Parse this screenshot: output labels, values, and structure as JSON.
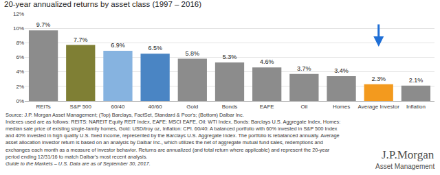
{
  "chart_data": {
    "type": "bar",
    "title": "20-year annualized returns by asset class (1997 – 2016)",
    "categories": [
      "REITs",
      "S&P 500",
      "60/40",
      "40/60",
      "Gold",
      "Bonds",
      "EAFE",
      "Oil",
      "Homes",
      "Average Investor",
      "Inflation"
    ],
    "values": [
      9.7,
      7.7,
      6.9,
      6.5,
      5.8,
      5.3,
      4.6,
      3.7,
      3.4,
      2.3,
      2.1
    ],
    "value_labels": [
      "9.7%",
      "7.7%",
      "6.9%",
      "6.5%",
      "5.8%",
      "5.3%",
      "4.6%",
      "3.7%",
      "3.4%",
      "2.3%",
      "2.1%"
    ],
    "colors": [
      "#8c8c8c",
      "#7f7f34",
      "#86b3e0",
      "#4a85c4",
      "#8c8c8c",
      "#8c8c8c",
      "#8c8c8c",
      "#8c8c8c",
      "#8c8c8c",
      "#f39a1e",
      "#8c8c8c"
    ],
    "ylim": [
      0,
      12
    ],
    "yticks": [
      {
        "value": 0,
        "label": "0%"
      },
      {
        "value": 2,
        "label": "2%"
      },
      {
        "value": 4,
        "label": "4%"
      },
      {
        "value": 6,
        "label": "6%"
      },
      {
        "value": 8,
        "label": "8%"
      },
      {
        "value": 10,
        "label": "10%"
      },
      {
        "value": 12,
        "label": "12%"
      }
    ],
    "grid": true,
    "data_labels": true,
    "source_notes": [
      "Source: J.P. Morgan Asset Management; (Top) Barclays, FactSet, Standard & Poor's; (Bottom) Dalbar Inc.",
      "Indexes used are as follows: REITS: NAREIT Equity REIT Index, EAFE: MSCI EAFE, Oil: WTI Index, Bonds: Barclays U.S. Aggregate Index, Homes:",
      "median sale price of existing single-family homes, Gold: USD/troy oz, Inflation: CPI. 60/40: A balanced portfolio with 60% invested in S&P 500 Index",
      "and 40% invested in high quality U.S. fixed income, represented by the Barclays U.S. Aggregate Index. The portfolio is rebalanced annually. Average",
      "asset allocation investor return is based on an analysis by Dalbar Inc., which utilizes the net of aggregate mutual fund sales, redemptions and",
      "exchanges each month as a measure of investor behavior. Returns are annualized (and total return where applicable) and represent the 20-year",
      "period ending 12/31/16 to match Dalbar's most recent analysis.",
      "Guide to the Markets – U.S. Data are as of September 30, 2017."
    ],
    "logo": {
      "name": "J.P.Morgan",
      "subtitle": "Asset Management"
    }
  }
}
